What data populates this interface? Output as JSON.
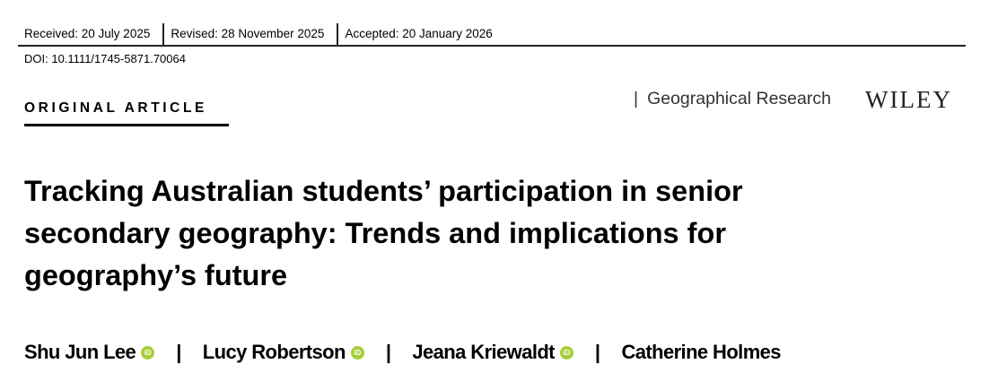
{
  "header": {
    "received": "Received: 20 July 2025",
    "revised": "Revised: 28 November 2025",
    "accepted": "Accepted: 20 January 2026",
    "doi": "DOI: 10.1111/1745-5871.70064"
  },
  "article_type": "ORIGINAL ARTICLE",
  "journal": {
    "separator": "|",
    "name": "Geographical Research",
    "publisher": "WILEY"
  },
  "title_lines": [
    "Tracking Australian students’ participation in senior",
    "secondary geography: Trends and implications for",
    "geography’s future"
  ],
  "authors": [
    {
      "name": "Shu Jun Lee",
      "orcid": true
    },
    {
      "name": "Lucy Robertson",
      "orcid": true
    },
    {
      "name": "Jeana Kriewaldt",
      "orcid": true
    },
    {
      "name": "Catherine Holmes",
      "orcid": false
    }
  ],
  "author_separator": "|",
  "orcid_label": "iD",
  "colors": {
    "orcid": "#a6ce39"
  }
}
